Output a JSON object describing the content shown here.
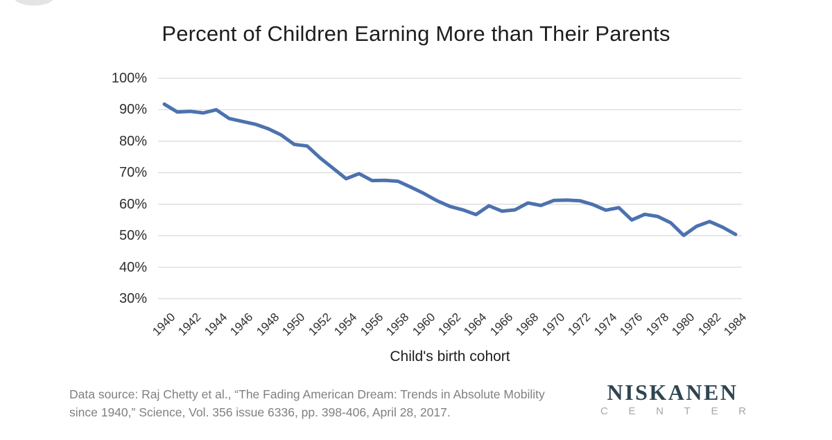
{
  "title": "Percent of Children Earning More than Their Parents",
  "chart_data": {
    "type": "line",
    "title": "Percent of Children Earning More than Their Parents",
    "xlabel": "Child's birth cohort",
    "ylabel": "",
    "x": [
      1940,
      1941,
      1942,
      1943,
      1944,
      1945,
      1946,
      1947,
      1948,
      1949,
      1950,
      1951,
      1952,
      1953,
      1954,
      1955,
      1956,
      1957,
      1958,
      1959,
      1960,
      1961,
      1962,
      1963,
      1964,
      1965,
      1966,
      1967,
      1968,
      1969,
      1970,
      1971,
      1972,
      1973,
      1974,
      1975,
      1976,
      1977,
      1978,
      1979,
      1980,
      1981,
      1982,
      1983,
      1984
    ],
    "series": [
      {
        "name": "Percent of children earning more than their parents",
        "values": [
          91.8,
          89.3,
          89.5,
          89.0,
          90.0,
          87.2,
          86.3,
          85.4,
          84.0,
          82.0,
          79.0,
          78.5,
          74.7,
          71.4,
          68.1,
          69.7,
          67.5,
          67.6,
          67.3,
          65.4,
          63.4,
          61.1,
          59.3,
          58.2,
          56.7,
          59.5,
          57.8,
          58.2,
          60.4,
          59.6,
          61.2,
          61.3,
          61.1,
          59.9,
          58.1,
          58.9,
          55.0,
          56.8,
          56.1,
          54.1,
          50.1,
          53.0,
          54.5,
          52.7,
          50.4
        ],
        "color": "#4c72ae"
      }
    ],
    "ylim": [
      30,
      100
    ],
    "ytick_values": [
      100,
      90,
      80,
      70,
      60,
      50,
      40,
      30
    ],
    "ytick_labels": [
      "100%",
      "90%",
      "80%",
      "70%",
      "60%",
      "50%",
      "40%",
      "30%"
    ],
    "xtick_labels": [
      "1940",
      "1942",
      "1944",
      "1946",
      "1948",
      "1950",
      "1952",
      "1954",
      "1956",
      "1958",
      "1960",
      "1962",
      "1964",
      "1966",
      "1968",
      "1970",
      "1972",
      "1974",
      "1976",
      "1978",
      "1980",
      "1982",
      "1984"
    ],
    "grid": true,
    "gridline_color": "#d9d9d9",
    "legend_position": "none"
  },
  "footer": {
    "source_line1": "Data source: Raj Chetty et al., “The Fading American Dream: Trends in Absolute Mobility",
    "source_line2": "since 1940,” Science, Vol. 356 issue 6336, pp. 398-406, April 28, 2017.",
    "logo": {
      "primary": "NISKANEN",
      "secondary": "CENTER"
    }
  },
  "colors": {
    "line": "#4c72ae",
    "gridline": "#d9d9d9",
    "title_text": "#1d1d1d",
    "tick_text": "#2e2e2e",
    "source_text": "#808080",
    "logo_primary": "#2e4452",
    "logo_secondary": "#a3a7ab"
  }
}
